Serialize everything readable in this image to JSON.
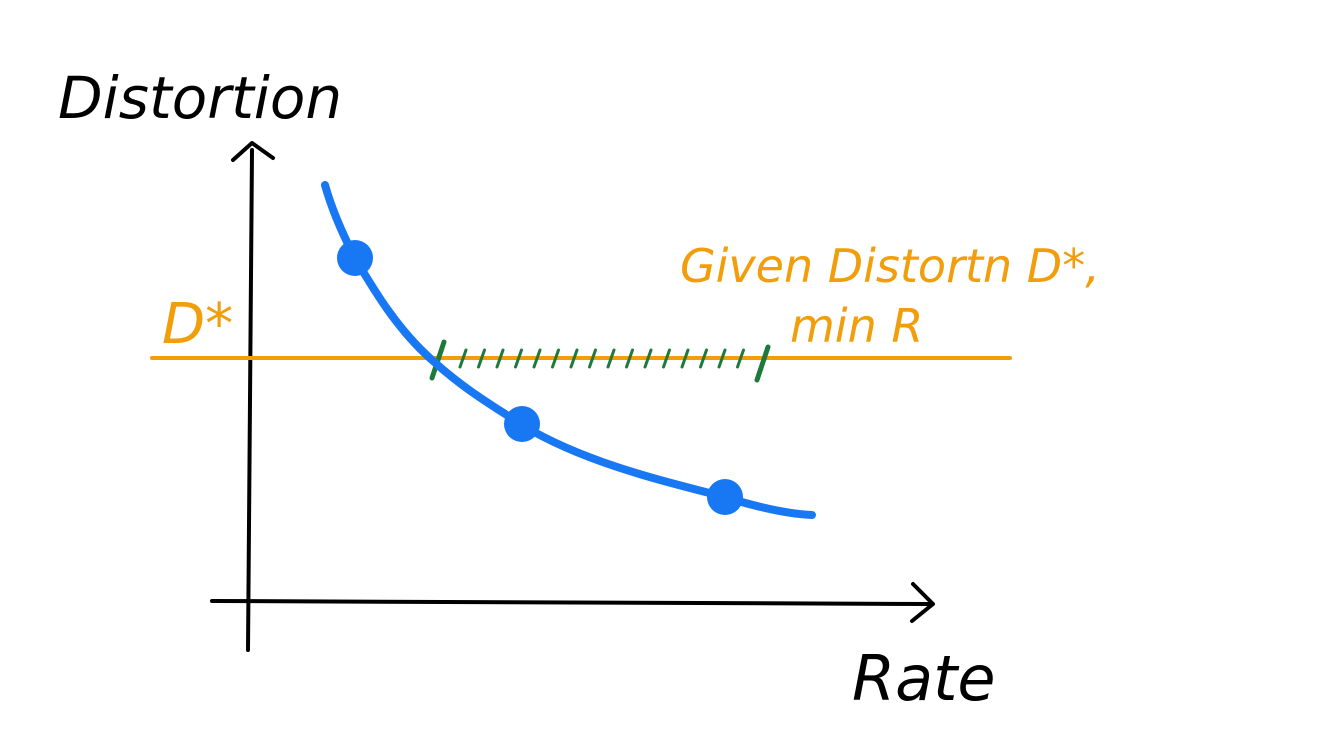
{
  "chart_data": {
    "type": "line",
    "title": "",
    "xlabel": "Rate",
    "ylabel": "Distortion",
    "grid": false,
    "legend": "none",
    "threshold_label": "D*",
    "annotation": {
      "line1": "Given Distortn D*,",
      "line2": "min R"
    },
    "series": [
      {
        "values": [],
        "marked_points": 3
      }
    ],
    "colors": {
      "curve": "#1877f2",
      "threshold": "#f29d0a",
      "feasible_region": "#1d7a3a",
      "axes": "#000000",
      "text_dark": "#000000",
      "text_accent": "#f29d0a"
    }
  }
}
